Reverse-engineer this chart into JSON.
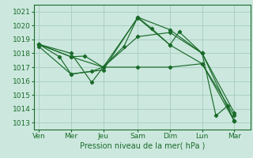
{
  "background_color": "#cce8de",
  "grid_color": "#aacfc4",
  "line_color": "#1a6b2a",
  "marker_color": "#1a6b2a",
  "xlabel": "Pression niveau de la mer( hPa )",
  "ylim": [
    1012.5,
    1021.5
  ],
  "yticks": [
    1013,
    1014,
    1015,
    1016,
    1017,
    1018,
    1019,
    1020,
    1021
  ],
  "xtick_labels": [
    "Ven",
    "Mer",
    "Jeu",
    "Sam",
    "Dim",
    "Lun",
    "Mar"
  ],
  "xtick_positions": [
    0,
    1.4,
    2.8,
    4.3,
    5.7,
    7.1,
    8.5
  ],
  "xlim": [
    -0.2,
    9.2
  ],
  "series": [
    {
      "x": [
        0,
        1.4,
        2.8,
        4.3,
        5.7,
        7.1,
        8.5
      ],
      "y": [
        1018.65,
        1017.75,
        1017.0,
        1020.55,
        1018.6,
        1017.25,
        1013.1
      ]
    },
    {
      "x": [
        0,
        1.4,
        2.8,
        4.3,
        5.7,
        7.1,
        8.5
      ],
      "y": [
        1018.5,
        1016.5,
        1016.8,
        1020.6,
        1019.7,
        1018.0,
        1013.7
      ]
    },
    {
      "x": [
        0,
        1.4,
        2.0,
        2.8,
        3.7,
        4.3,
        4.9,
        5.7,
        6.1,
        7.1,
        7.7,
        8.2,
        8.5
      ],
      "y": [
        1018.65,
        1017.75,
        1017.8,
        1017.0,
        1018.5,
        1020.6,
        1019.8,
        1018.6,
        1019.55,
        1018.0,
        1013.5,
        1014.2,
        1013.1
      ]
    },
    {
      "x": [
        0,
        0.9,
        1.4,
        2.3,
        2.8,
        4.3,
        5.7,
        7.1,
        8.5
      ],
      "y": [
        1018.65,
        1017.75,
        1016.5,
        1016.7,
        1017.0,
        1017.0,
        1017.0,
        1017.25,
        1013.5
      ]
    },
    {
      "x": [
        0,
        1.4,
        2.3,
        2.8,
        4.3,
        5.7,
        7.1,
        8.5
      ],
      "y": [
        1018.65,
        1018.0,
        1015.9,
        1017.0,
        1019.2,
        1019.5,
        1018.0,
        1013.1
      ]
    }
  ]
}
